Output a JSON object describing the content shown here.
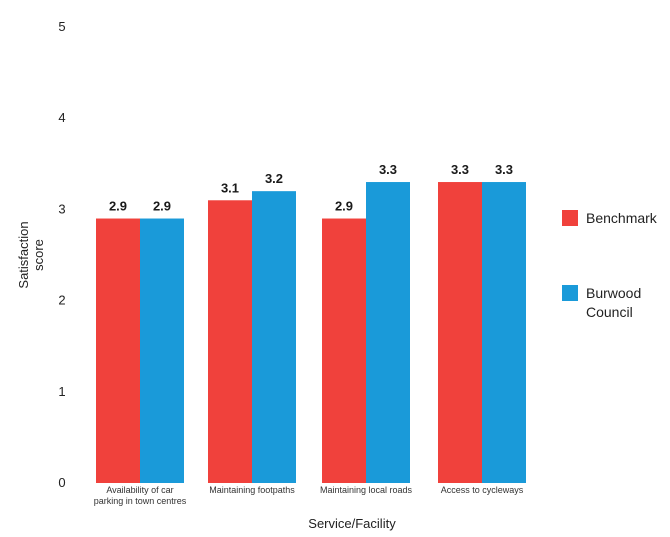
{
  "chart_data": {
    "type": "bar",
    "categories": [
      [
        "Availability of car",
        "parking in town centres"
      ],
      [
        "Maintaining footpaths"
      ],
      [
        "Maintaining local roads"
      ],
      [
        "Access to cycleways"
      ]
    ],
    "series": [
      {
        "name": "Benchmark",
        "color": "#f0413c",
        "values": [
          2.9,
          3.1,
          2.9,
          3.3
        ]
      },
      {
        "name": "Burwood Council",
        "color": "#1a9ad9",
        "values": [
          2.9,
          3.2,
          3.3,
          3.3
        ]
      }
    ],
    "legend_lines": [
      [
        "Benchmark"
      ],
      [
        "Burwood",
        "Council"
      ]
    ],
    "title": "",
    "xlabel": "Service/Facility",
    "ylabel_lines": [
      "Satisfaction",
      "score"
    ],
    "ylim": [
      0,
      5
    ],
    "yticks": [
      0,
      1,
      2,
      3,
      4,
      5
    ],
    "grid": false,
    "legend_position": "right"
  }
}
